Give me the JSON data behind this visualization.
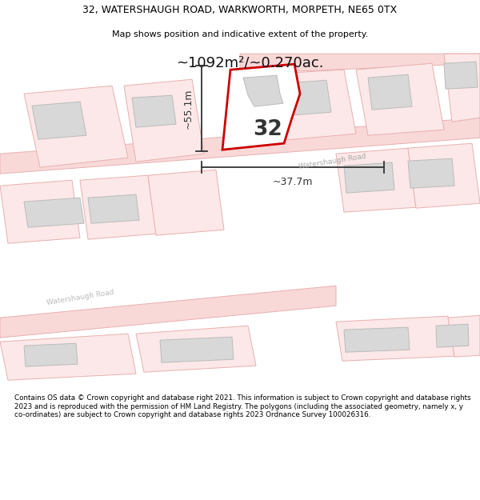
{
  "title_line1": "32, WATERSHAUGH ROAD, WARKWORTH, MORPETH, NE65 0TX",
  "title_line2": "Map shows position and indicative extent of the property.",
  "area_text": "~1092m²/~0.270ac.",
  "label_32": "32",
  "dim_width": "~37.7m",
  "dim_height": "~55.1m",
  "road_label_main": "Watershaugh Road",
  "road_label_lower": "Watershaugh Road",
  "footer": "Contains OS data © Crown copyright and database right 2021. This information is subject to Crown copyright and database rights 2023 and is reproduced with the permission of HM Land Registry. The polygons (including the associated geometry, namely x, y co-ordinates) are subject to Crown copyright and database rights 2023 Ordnance Survey 100026316.",
  "bg_color": "#ffffff",
  "map_bg": "#ffffff",
  "road_fill": "#f9d8d8",
  "road_edge": "#e8b0b0",
  "lot_outline_fill": "#fce8e8",
  "lot_edge": "#e8b0b0",
  "building_fill": "#d8d8d8",
  "building_edge": "#bbbbbb",
  "plot_edge": "#cc0000",
  "plot_fill": "#ffffff",
  "dim_color": "#333333",
  "text_color": "#222222",
  "footer_sep_color": "#cccccc"
}
